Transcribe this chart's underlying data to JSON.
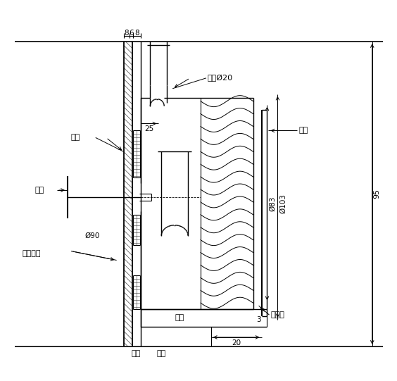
{
  "bg_color": "#ffffff",
  "fig_width": 5.64,
  "fig_height": 5.41,
  "labels": {
    "zhuan_pan1": "转盘",
    "shou_bing": "手柄",
    "zhuan_pan_liu_dong": "转盘留洞",
    "gang_guan": "钢管Ø20",
    "mu_dian": "木垫",
    "di_ban": "底板",
    "hou_gai_ban": "后盖板",
    "zhuan_pan2": "转盘",
    "chen_ban": "衬板",
    "dim_8": "8",
    "dim_6": "6",
    "dim_8b": "8",
    "dim_25": "25",
    "dim_phi83": "Ø83",
    "dim_phi103": "Ø103",
    "dim_phi90": "Ø90",
    "dim_3": "3",
    "dim_20": "20",
    "dim_95": "95"
  }
}
